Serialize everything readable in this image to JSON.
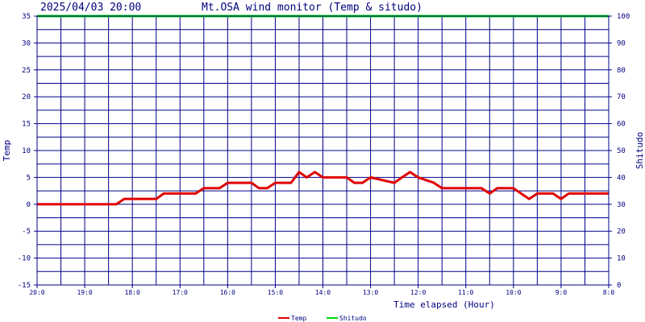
{
  "header": {
    "datetime": "2025/04/03 20:00",
    "title": "Mt.OSA wind monitor (Temp & situdo)"
  },
  "chart_data": {
    "type": "line",
    "title": "Mt.OSA wind monitor (Temp & situdo)",
    "xlabel": "Time elapsed (Hour)",
    "ylabel": "Temp",
    "y2label": "Shitudo",
    "x_ticks": [
      "20:0",
      "19:0",
      "18:0",
      "17:0",
      "16:0",
      "15:0",
      "14:0",
      "13:0",
      "12:0",
      "11:0",
      "10:0",
      "9:0",
      "8:0"
    ],
    "x_range_hours_elapsed": [
      0,
      12
    ],
    "y_ticks": [
      35,
      30,
      25,
      20,
      15,
      10,
      5,
      0,
      -5,
      -10,
      -15
    ],
    "ylim": [
      -15,
      35
    ],
    "y2_ticks": [
      100,
      90,
      80,
      70,
      60,
      50,
      40,
      30,
      20,
      10,
      0
    ],
    "y2lim": [
      0,
      100
    ],
    "grid": true,
    "legend_position": "bottom-center",
    "colors": {
      "background": "#ffffff",
      "grid": "#00008b",
      "axis": "#00008b",
      "temp": "#e00000",
      "shitudo": "#00dd00",
      "text": "#000080"
    },
    "series": [
      {
        "name": "Temp",
        "axis": "left",
        "color": "#e00000",
        "x": [
          0,
          1.66,
          1.83,
          2.5,
          2.66,
          3.33,
          3.5,
          3.83,
          4.0,
          4.5,
          4.66,
          4.83,
          5.0,
          5.33,
          5.5,
          5.66,
          5.83,
          6.0,
          6.5,
          6.66,
          6.83,
          7.0,
          7.5,
          7.66,
          7.83,
          8.0,
          8.33,
          8.5,
          9.33,
          9.5,
          9.66,
          10.0,
          10.16,
          10.33,
          10.5,
          10.83,
          11.0,
          11.16,
          12.0
        ],
        "values": [
          0,
          0,
          1,
          1,
          2,
          2,
          3,
          3,
          4,
          4,
          3,
          3,
          4,
          4,
          6,
          5,
          6,
          5,
          5,
          4,
          4,
          5,
          4,
          5,
          6,
          5,
          4,
          3,
          3,
          2,
          3,
          3,
          2,
          1,
          2,
          2,
          1,
          2,
          2
        ]
      },
      {
        "name": "Shitudo",
        "axis": "right",
        "color": "#00dd00",
        "x": [
          0,
          12
        ],
        "values": [
          100,
          100
        ]
      }
    ]
  }
}
